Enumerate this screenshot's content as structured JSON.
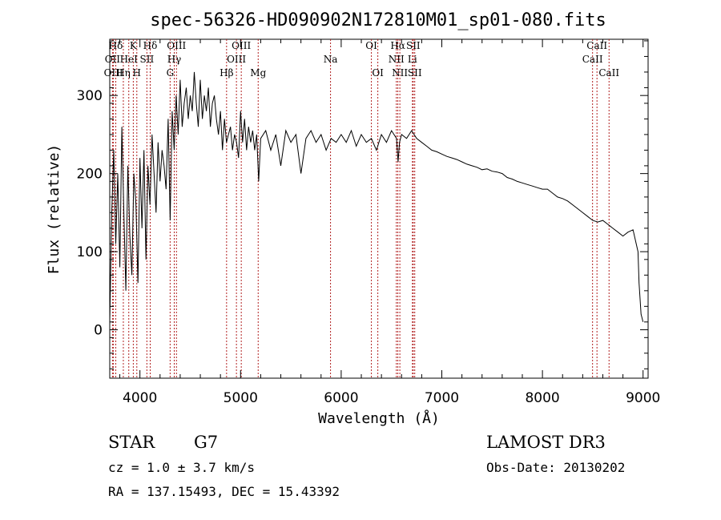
{
  "chart_data": {
    "type": "line",
    "title": "spec-56326-HD090902N172810M01_sp01-080.fits",
    "xlabel": "Wavelength (Å)",
    "ylabel": "Flux (relative)",
    "xlim": [
      3700,
      9050
    ],
    "ylim": [
      -62,
      372
    ],
    "x_ticks": [
      4000,
      5000,
      6000,
      7000,
      8000,
      9000
    ],
    "y_ticks": [
      0,
      100,
      200,
      300
    ],
    "grid": false,
    "series": [
      {
        "name": "spectrum",
        "x": [
          3700,
          3720,
          3740,
          3760,
          3780,
          3800,
          3820,
          3840,
          3860,
          3880,
          3900,
          3920,
          3940,
          3960,
          3980,
          4000,
          4020,
          4040,
          4060,
          4080,
          4100,
          4120,
          4140,
          4160,
          4180,
          4200,
          4220,
          4240,
          4260,
          4280,
          4300,
          4320,
          4340,
          4360,
          4380,
          4400,
          4420,
          4440,
          4460,
          4480,
          4500,
          4520,
          4540,
          4560,
          4580,
          4600,
          4620,
          4640,
          4660,
          4680,
          4700,
          4720,
          4740,
          4760,
          4780,
          4800,
          4820,
          4840,
          4860,
          4880,
          4900,
          4920,
          4940,
          4960,
          4980,
          5000,
          5020,
          5040,
          5060,
          5080,
          5100,
          5120,
          5140,
          5160,
          5180,
          5200,
          5250,
          5300,
          5350,
          5400,
          5450,
          5500,
          5550,
          5600,
          5650,
          5700,
          5750,
          5800,
          5850,
          5900,
          5950,
          6000,
          6050,
          6100,
          6150,
          6200,
          6250,
          6300,
          6350,
          6400,
          6450,
          6500,
          6550,
          6565,
          6580,
          6600,
          6650,
          6700,
          6750,
          6800,
          6850,
          6900,
          6950,
          7000,
          7050,
          7100,
          7150,
          7200,
          7250,
          7300,
          7350,
          7400,
          7450,
          7500,
          7550,
          7600,
          7650,
          7700,
          7750,
          7800,
          7850,
          7900,
          7950,
          8000,
          8050,
          8100,
          8150,
          8200,
          8250,
          8300,
          8350,
          8400,
          8450,
          8500,
          8550,
          8600,
          8650,
          8700,
          8750,
          8800,
          8850,
          8900,
          8950,
          8960,
          8980,
          9000
        ],
        "y": [
          10,
          150,
          230,
          110,
          200,
          80,
          260,
          150,
          50,
          210,
          120,
          70,
          200,
          160,
          60,
          220,
          130,
          230,
          90,
          210,
          160,
          250,
          200,
          150,
          240,
          190,
          230,
          210,
          180,
          270,
          140,
          280,
          230,
          300,
          250,
          320,
          260,
          290,
          310,
          270,
          300,
          280,
          330,
          290,
          260,
          320,
          270,
          300,
          280,
          310,
          260,
          290,
          300,
          270,
          250,
          280,
          230,
          270,
          240,
          250,
          260,
          230,
          250,
          240,
          220,
          280,
          240,
          270,
          230,
          260,
          240,
          255,
          230,
          250,
          190,
          245,
          255,
          230,
          250,
          210,
          255,
          240,
          250,
          200,
          245,
          255,
          240,
          250,
          230,
          245,
          240,
          250,
          240,
          255,
          235,
          250,
          240,
          245,
          230,
          250,
          240,
          255,
          245,
          215,
          240,
          250,
          245,
          255,
          245,
          240,
          235,
          230,
          228,
          225,
          222,
          220,
          218,
          215,
          212,
          210,
          208,
          205,
          206,
          203,
          202,
          200,
          195,
          193,
          190,
          188,
          186,
          184,
          182,
          180,
          180,
          175,
          170,
          168,
          165,
          160,
          155,
          150,
          145,
          140,
          138,
          140,
          135,
          130,
          125,
          120,
          125,
          128,
          100,
          60,
          20,
          10
        ]
      }
    ],
    "emission_lines": [
      {
        "label": "Hδ",
        "x": 3760,
        "row": 1
      },
      {
        "label": "OII",
        "x": 3727,
        "row": 2
      },
      {
        "label": "OIII",
        "x": 3737,
        "row": 3
      },
      {
        "label": "K",
        "x": 3934,
        "row": 1
      },
      {
        "label": "HeI",
        "x": 3889,
        "row": 2
      },
      {
        "label": "Hη",
        "x": 3835,
        "row": 3
      },
      {
        "label": "SII",
        "x": 4069,
        "row": 2
      },
      {
        "label": "H",
        "x": 3969,
        "row": 3
      },
      {
        "label": "Hδ",
        "x": 4102,
        "row": 1
      },
      {
        "label": "OIII",
        "x": 4363,
        "row": 1
      },
      {
        "label": "Hγ",
        "x": 4341,
        "row": 2
      },
      {
        "label": "G",
        "x": 4300,
        "row": 3
      },
      {
        "label": "Hβ",
        "x": 4861,
        "row": 3
      },
      {
        "label": "OIII",
        "x": 5007,
        "row": 1
      },
      {
        "label": "OIII",
        "x": 4959,
        "row": 2
      },
      {
        "label": "Mg",
        "x": 5175,
        "row": 3
      },
      {
        "label": "Na",
        "x": 5894,
        "row": 2
      },
      {
        "label": "OI",
        "x": 6300,
        "row": 1
      },
      {
        "label": "OI",
        "x": 6364,
        "row": 3
      },
      {
        "label": "Hα",
        "x": 6563,
        "row": 1
      },
      {
        "label": "SII",
        "x": 6716,
        "row": 1
      },
      {
        "label": "NII",
        "x": 6548,
        "row": 2
      },
      {
        "label": "Li",
        "x": 6708,
        "row": 2
      },
      {
        "label": "NII",
        "x": 6583,
        "row": 3
      },
      {
        "label": "SII",
        "x": 6731,
        "row": 3
      },
      {
        "label": "CaII",
        "x": 8542,
        "row": 1
      },
      {
        "label": "CaII",
        "x": 8498,
        "row": 2
      },
      {
        "label": "CaII",
        "x": 8662,
        "row": 3
      }
    ]
  },
  "info": {
    "object_class": "STAR",
    "subclass": "G7",
    "survey": "LAMOST DR3",
    "redshift": "cz = 1.0 ± 3.7 km/s",
    "obs_date": "Obs-Date: 20130202",
    "coords": "RA = 137.15493, DEC =  15.43392"
  },
  "colors": {
    "line_marker": "#b22222",
    "spectrum": "#000000"
  }
}
